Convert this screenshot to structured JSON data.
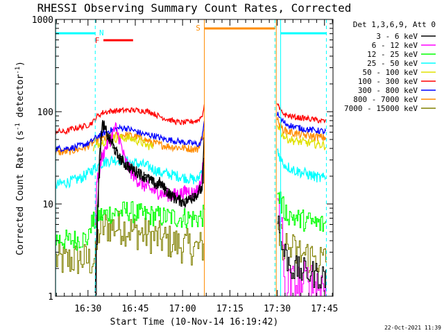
{
  "chart_data": {
    "type": "line",
    "title": "RHESSI Observing Summary Count Rates, Corrected",
    "xlabel": "Start Time (10-Nov-14 16:19:42)",
    "ylabel": "Corrected Count Rate (s⁻¹ detector⁻¹)",
    "ylabel_main": "Corrected Count Rate (s",
    "ylabel_sup1": "-1",
    "ylabel_mid": " detector",
    "ylabel_sup2": "-1",
    "ylabel_end": ")",
    "y_scale": "log",
    "ylim": [
      1,
      1000
    ],
    "xlim_minutes": [
      0,
      88
    ],
    "x_ticks": [
      {
        "label": "16:30",
        "minute": 10.3
      },
      {
        "label": "16:45",
        "minute": 25.3
      },
      {
        "label": "17:00",
        "minute": 40.3
      },
      {
        "label": "17:15",
        "minute": 55.3
      },
      {
        "label": "17:30",
        "minute": 70.3
      },
      {
        "label": "17:45",
        "minute": 85.3
      }
    ],
    "y_ticks": [
      {
        "label": "1",
        "value": 1
      },
      {
        "label": "10",
        "value": 10
      },
      {
        "label": "100",
        "value": 100
      },
      {
        "label": "1000",
        "value": 1000
      }
    ],
    "legend_title": "Det 1,3,6,9, Att 0",
    "legend_position": "right, outside plot",
    "series": [
      {
        "name": "3 - 6 keV",
        "color": "#000000",
        "key": "s3"
      },
      {
        "name": "6 - 12 keV",
        "color": "#ff00ff",
        "key": "s6"
      },
      {
        "name": "12 - 25 keV",
        "color": "#00ff00",
        "key": "s12"
      },
      {
        "name": "25 - 50 keV",
        "color": "#00ffff",
        "key": "s25"
      },
      {
        "name": "50 - 100 keV",
        "color": "#e0e000",
        "key": "s50"
      },
      {
        "name": "100 - 300 keV",
        "color": "#ff0000",
        "key": "s100"
      },
      {
        "name": "300 - 800 keV",
        "color": "#0000ff",
        "key": "s300"
      },
      {
        "name": "800 - 7000 keV",
        "color": "#ff8c00",
        "key": "s800"
      },
      {
        "name": "7000 - 15000 keV",
        "color": "#808000",
        "key": "s7000"
      }
    ],
    "annotations": [
      {
        "label": "N",
        "color": "#00ffff"
      },
      {
        "label": "F",
        "color": "#ff0000"
      },
      {
        "label": "S",
        "color": "#ff8c00"
      }
    ],
    "footer_date": "22-Oct-2021 11:39"
  }
}
